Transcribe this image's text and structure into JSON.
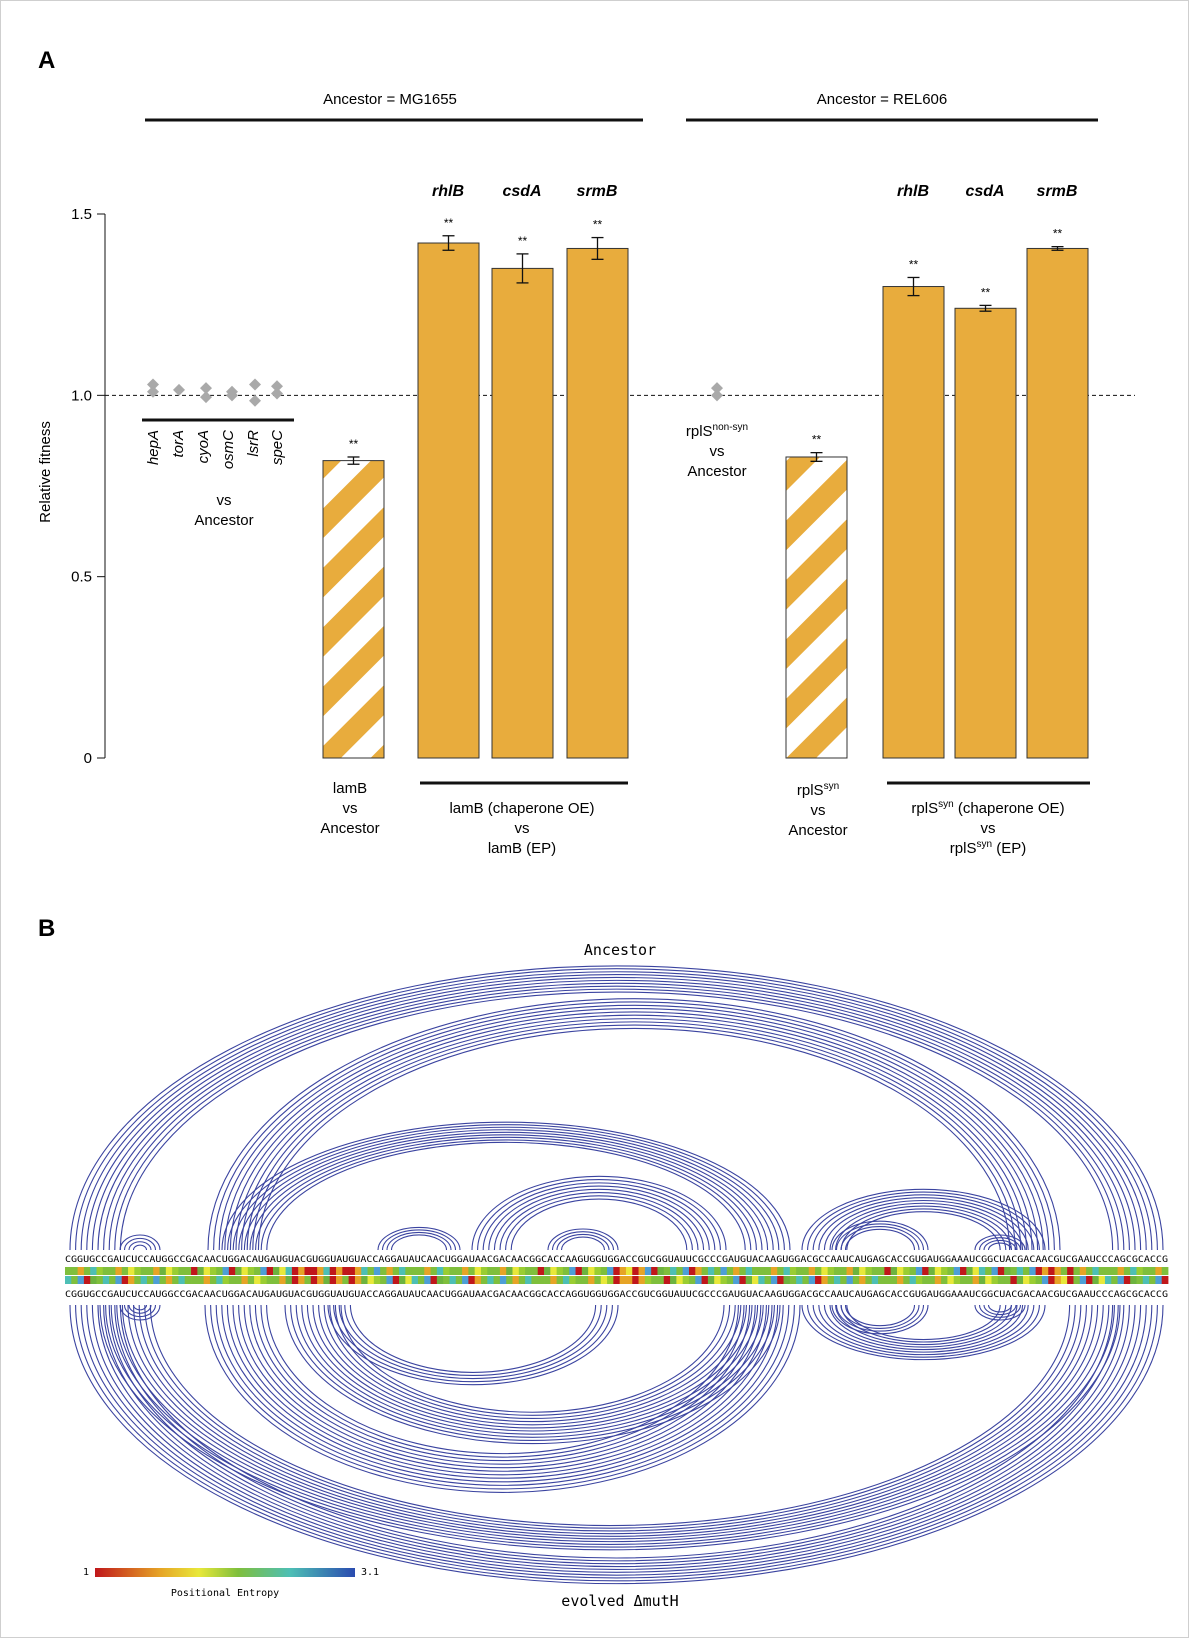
{
  "panel_a": {
    "letter": "A",
    "ancestor_left": "Ancestor = MG1655",
    "ancestor_right": "Ancestor = REL606",
    "stars": "**",
    "left_group_labels": [
      "hepA",
      "torA",
      "cyoA",
      "osmC",
      "lsrR",
      "speC"
    ],
    "left_vs": "vs",
    "left_ancestor": "Ancestor",
    "lamB_label": [
      "lamB",
      "vs",
      "Ancestor"
    ],
    "lamB_chap_label": [
      "lamB (chaperone OE)",
      "vs",
      "lamB (EP)"
    ],
    "rplS_nonsyn_label": {
      "base": "rplS",
      "sup": "non-syn",
      "line2": "vs",
      "line3": "Ancestor"
    },
    "rplS_syn_label": {
      "base": "rplS",
      "sup": "syn",
      "line2": "vs",
      "line3": "Ancestor"
    },
    "rplS_chap_label": {
      "line1_base": "rplS",
      "line1_sup": "syn",
      "line1_rest": " (chaperone OE)",
      "line2": "vs",
      "line3_base": "rplS",
      "line3_sup": "syn",
      "line3_rest": " (EP)"
    },
    "gene_headers_left": [
      "rhlB",
      "csdA",
      "srmB"
    ],
    "gene_headers_right": [
      "rhlB",
      "csdA",
      "srmB"
    ]
  },
  "chart_data": {
    "type": "bar",
    "ylabel": "Relative fitness",
    "ylim": [
      0,
      1.5
    ],
    "yticks": [
      0,
      0.5,
      1.0,
      1.5
    ],
    "ytick_labels": [
      "0",
      "0.5",
      "1.0",
      "1.5"
    ],
    "reference_line": 1.0,
    "bar_color": "#e8ac3d",
    "marker_color": "#a9a9a9",
    "bars": [
      {
        "group": "MG1655",
        "label": "lamB vs Ancestor",
        "value": 0.82,
        "err": 0.01,
        "hatched": true,
        "sig": "**"
      },
      {
        "group": "MG1655",
        "label": "rhlB",
        "value": 1.42,
        "err": 0.02,
        "hatched": false,
        "sig": "**"
      },
      {
        "group": "MG1655",
        "label": "csdA",
        "value": 1.35,
        "err": 0.04,
        "hatched": false,
        "sig": "**"
      },
      {
        "group": "MG1655",
        "label": "srmB",
        "value": 1.405,
        "err": 0.03,
        "hatched": false,
        "sig": "**"
      },
      {
        "group": "REL606",
        "label": "rplS syn vs Ancestor",
        "value": 0.83,
        "err": 0.012,
        "hatched": true,
        "sig": "**"
      },
      {
        "group": "REL606",
        "label": "rhlB",
        "value": 1.3,
        "err": 0.025,
        "hatched": false,
        "sig": "**"
      },
      {
        "group": "REL606",
        "label": "csdA",
        "value": 1.24,
        "err": 0.008,
        "hatched": false,
        "sig": "**"
      },
      {
        "group": "REL606",
        "label": "srmB",
        "value": 1.405,
        "err": 0.005,
        "hatched": false,
        "sig": "**"
      }
    ],
    "points": [
      {
        "label": "hepA",
        "values": [
          1.03,
          1.01
        ]
      },
      {
        "label": "torA",
        "values": [
          1.015
        ]
      },
      {
        "label": "cyoA",
        "values": [
          1.02,
          0.995
        ]
      },
      {
        "label": "osmC",
        "values": [
          1.01,
          1.0
        ]
      },
      {
        "label": "lsrR",
        "values": [
          1.03,
          0.985
        ]
      },
      {
        "label": "speC",
        "values": [
          1.025,
          1.005
        ]
      },
      {
        "label": "rplS non-syn",
        "values": [
          1.02,
          1.0
        ]
      }
    ]
  },
  "panel_b": {
    "letter": "B",
    "top_title": "Ancestor",
    "bottom_title": "evolved ΔmutH",
    "sequence_top": "CGGUGCCGAUCUCCAUGGCCGACAACUGGACAUGAUGUACGUGGUAUGUACCAGGAUAUCAACUGGAUAACGACAACGGCACCAAGUGGUGGACCGUCGGUAUUCGCCCGAUGUACAAGUGGACGCCAAUCAUGAGCACCGUGAUGGAAAUCGGCUACGACAACGUCGAAUCCCAGCGCACCG",
    "sequence_bottom": "CGGUGCCGAUCUCCAUGGCCGACAACUGGACAUGAUGUACGUGGUAUGUACCAGGAUAUCAACUGGAUAACGACAACGGCACCAGGUGGUGGACCGUCGGUAUUCGCCCGAUGUACAAGUGGACGCCAAUCAUGAGCACCGUGAUGGAAAUCGGCUACGACAACGUCGAAUCCCAGCGCACCG",
    "legend_title": "Positional Entropy",
    "legend_min": "1",
    "legend_max": "3.1",
    "arc_color": "#3b44a0"
  }
}
